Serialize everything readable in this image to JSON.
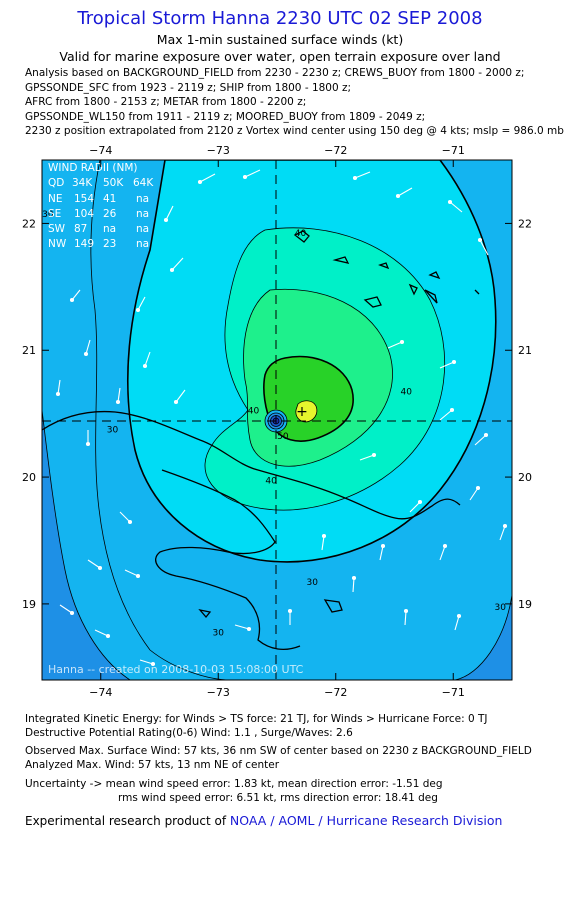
{
  "header": {
    "title": "Tropical Storm Hanna 2230 UTC 02 SEP 2008",
    "subtitle1": "Max 1-min sustained surface winds (kt)",
    "subtitle2": "Valid for marine exposure over water, open terrain exposure over land"
  },
  "analysis_lines": [
    "Analysis based on  BACKGROUND_FIELD from 2230 - 2230 z;  CREWS_BUOY from 1800 - 2000 z;",
    "GPSSONDE_SFC from 1923 - 2119 z;  SHIP from 1800 - 1800 z;",
    "AFRC from 1800 - 2153 z;  METAR from 1800 - 2200 z;",
    "GPSSONDE_WL150 from 1911 - 2119 z;  MOORED_BUOY from 1809 - 2049 z;",
    "2230 z position extrapolated from 2120 z Vortex wind center using 150 deg @ 4 kts; mslp = 986.0 mb"
  ],
  "chart_data": {
    "type": "contour",
    "xlim": [
      -74.5,
      -70.5
    ],
    "ylim": [
      18.4,
      22.5
    ],
    "x_ticks": [
      -74,
      -73,
      -72,
      -71
    ],
    "y_ticks": [
      19,
      20,
      21,
      22
    ],
    "x_tick_labels": [
      "−74",
      "−73",
      "−72",
      "−71"
    ],
    "y_tick_labels": [
      "19",
      "20",
      "21",
      "22"
    ],
    "center": {
      "lon": -72.5,
      "lat": 20.4
    },
    "max_wind_location": {
      "lon": -72.35,
      "lat": 20.55
    },
    "contour_labels": [
      {
        "text": "30",
        "lon": -74.45,
        "lat": 22.05
      },
      {
        "text": "30",
        "lon": -73.9,
        "lat": 20.35
      },
      {
        "text": "30",
        "lon": -72.2,
        "lat": 19.15
      },
      {
        "text": "30",
        "lon": -73.0,
        "lat": 18.75
      },
      {
        "text": "30",
        "lon": -70.6,
        "lat": 18.95
      },
      {
        "text": "40",
        "lon": -72.3,
        "lat": 21.9
      },
      {
        "text": "40",
        "lon": -71.4,
        "lat": 20.65
      },
      {
        "text": "40",
        "lon": -72.7,
        "lat": 20.5
      },
      {
        "text": "40",
        "lon": -72.55,
        "lat": 19.95
      },
      {
        "text": "50",
        "lon": -72.45,
        "lat": 20.3
      }
    ],
    "wind_radii_table": {
      "title": "WIND RADII (NM)",
      "header": [
        "QD",
        "34K",
        "50K",
        "64K"
      ],
      "rows": [
        [
          "NE",
          "154",
          "41",
          "na"
        ],
        [
          "SE",
          "104",
          "26",
          "na"
        ],
        [
          "SW",
          "87",
          "na",
          "na"
        ],
        [
          "NW",
          "149",
          "23",
          "na"
        ]
      ]
    },
    "watermark": "Hanna -- created on 2008-10-03 15:08:00 UTC"
  },
  "colors": {
    "title": "#1a1ad6",
    "level_25_30": "#1e90e6",
    "level_30_35": "#14b4f0",
    "level_35_40": "#00dcf5",
    "level_40_45": "#00f0c8",
    "level_45_50": "#1ef08c",
    "level_50_55": "#28d228",
    "level_55_60": "#e6f52d"
  },
  "stats": {
    "ike": "Integrated Kinetic Energy:  for Winds > TS force: 21 TJ,  for Winds > Hurricane Force: 0 TJ",
    "dpr": "Destructive Potential Rating(0-6)   Wind: 1.1 , Surge/Waves: 2.6",
    "obs_max": "Observed Max. Surface Wind: 57 kts, 36 nm SW of center based on 2230 z BACKGROUND_FIELD",
    "ana_max": "Analyzed Max. Wind: 57 kts, 13 nm NE of center",
    "unc1": "Uncertainty -> mean wind speed error: 1.83 kt,   mean direction error:  -1.51 deg",
    "unc2": "rms wind speed error: 6.51 kt,   rms direction error: 18.41 deg"
  },
  "credit": {
    "prefix": "Experimental research product of ",
    "org": "NOAA / AOML / Hurricane Research Division"
  }
}
